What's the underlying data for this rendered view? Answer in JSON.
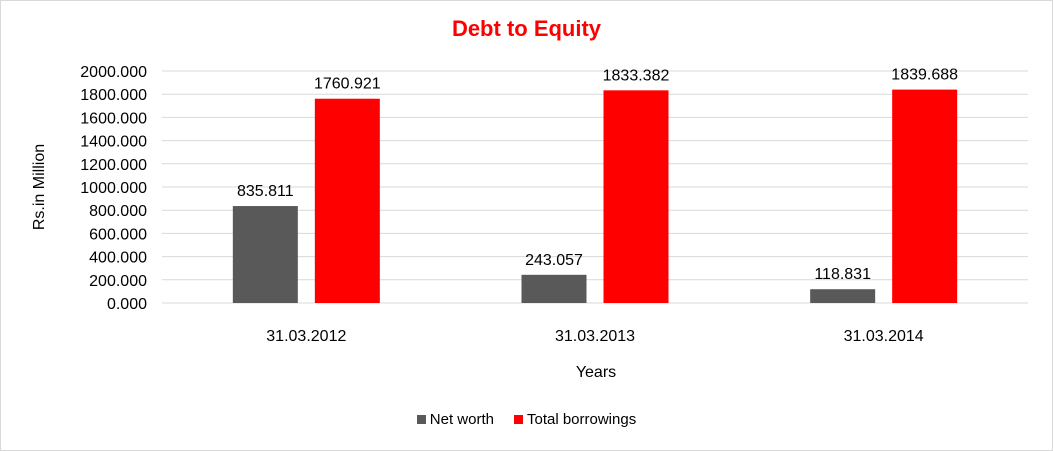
{
  "chart_data": {
    "type": "bar",
    "title": "Debt to Equity",
    "xlabel": "Years",
    "ylabel": "Rs.in Million",
    "categories": [
      "31.03.2012",
      "31.03.2013",
      "31.03.2014"
    ],
    "series": [
      {
        "name": "Net worth",
        "values": [
          835.811,
          243.057,
          118.831
        ],
        "labels": [
          "835.811",
          "243.057",
          "118.831"
        ],
        "color": "#595959"
      },
      {
        "name": "Total borrowings",
        "values": [
          1760.921,
          1833.382,
          1839.688
        ],
        "labels": [
          "1760.921",
          "1833.382",
          "1839.688"
        ],
        "color": "#ff0000"
      }
    ],
    "ylim": [
      0,
      2000
    ],
    "yticks": [
      "0.000",
      "200.000",
      "400.000",
      "600.000",
      "800.000",
      "1000.000",
      "1200.000",
      "1400.000",
      "1600.000",
      "1800.000",
      "2000.000"
    ],
    "grid": true,
    "legend_position": "bottom",
    "title_color": "#ff0000"
  }
}
